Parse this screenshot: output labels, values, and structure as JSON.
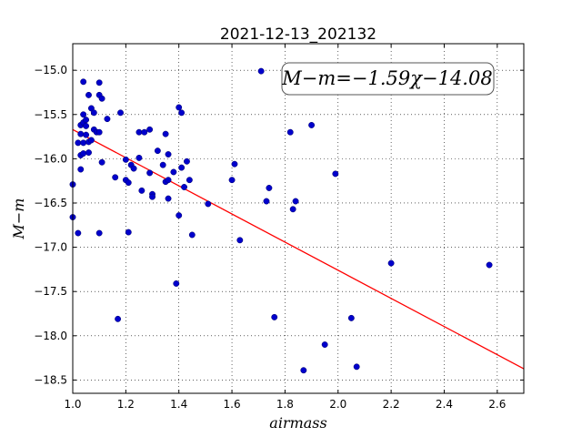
{
  "chart_data": {
    "type": "scatter",
    "title": "2021-12-13_202132",
    "xlabel": "airmass",
    "ylabel": "M−m",
    "xlim": [
      1.0,
      2.7
    ],
    "ylim": [
      -18.65,
      -14.7
    ],
    "y_inverted": true,
    "grid": true,
    "xticks": [
      1.0,
      1.2,
      1.4,
      1.6,
      1.8,
      2.0,
      2.2,
      2.4,
      2.6
    ],
    "xtick_labels": [
      "1.0",
      "1.2",
      "1.4",
      "1.6",
      "1.8",
      "2.0",
      "2.2",
      "2.4",
      "2.6"
    ],
    "yticks": [
      -15.0,
      -15.5,
      -16.0,
      -16.5,
      -17.0,
      -17.5,
      -18.0,
      -18.5
    ],
    "ytick_labels": [
      "−15.0",
      "−15.5",
      "−16.0",
      "−16.5",
      "−17.0",
      "−17.5",
      "−18.0",
      "−18.5"
    ],
    "point_color": "#0000cc",
    "fit_color": "#ff0000",
    "fit": {
      "slope": -1.59,
      "intercept": -14.08,
      "label": "M−m=−1.59χ−14.08"
    },
    "points": [
      [
        1.0,
        -16.29
      ],
      [
        1.0,
        -16.66
      ],
      [
        1.02,
        -15.82
      ],
      [
        1.02,
        -16.84
      ],
      [
        1.03,
        -15.62
      ],
      [
        1.03,
        -15.72
      ],
      [
        1.03,
        -15.96
      ],
      [
        1.03,
        -16.12
      ],
      [
        1.04,
        -15.13
      ],
      [
        1.04,
        -15.5
      ],
      [
        1.04,
        -15.59
      ],
      [
        1.04,
        -15.82
      ],
      [
        1.04,
        -15.94
      ],
      [
        1.05,
        -15.56
      ],
      [
        1.05,
        -15.73
      ],
      [
        1.05,
        -15.63
      ],
      [
        1.06,
        -15.28
      ],
      [
        1.06,
        -15.81
      ],
      [
        1.06,
        -15.93
      ],
      [
        1.07,
        -15.43
      ],
      [
        1.07,
        -15.79
      ],
      [
        1.08,
        -15.48
      ],
      [
        1.08,
        -15.67
      ],
      [
        1.09,
        -15.7
      ],
      [
        1.1,
        -15.28
      ],
      [
        1.1,
        -15.14
      ],
      [
        1.1,
        -15.7
      ],
      [
        1.1,
        -16.84
      ],
      [
        1.11,
        -16.04
      ],
      [
        1.11,
        -15.32
      ],
      [
        1.13,
        -15.55
      ],
      [
        1.16,
        -16.21
      ],
      [
        1.17,
        -17.81
      ],
      [
        1.18,
        -15.48
      ],
      [
        1.2,
        -16.24
      ],
      [
        1.2,
        -16.01
      ],
      [
        1.21,
        -16.27
      ],
      [
        1.21,
        -16.83
      ],
      [
        1.22,
        -16.07
      ],
      [
        1.23,
        -16.11
      ],
      [
        1.25,
        -15.7
      ],
      [
        1.25,
        -15.99
      ],
      [
        1.26,
        -16.36
      ],
      [
        1.27,
        -15.7
      ],
      [
        1.29,
        -15.67
      ],
      [
        1.29,
        -16.16
      ],
      [
        1.3,
        -16.4
      ],
      [
        1.3,
        -16.43
      ],
      [
        1.32,
        -15.91
      ],
      [
        1.34,
        -16.07
      ],
      [
        1.35,
        -15.72
      ],
      [
        1.35,
        -16.26
      ],
      [
        1.36,
        -15.95
      ],
      [
        1.36,
        -16.24
      ],
      [
        1.36,
        -16.45
      ],
      [
        1.38,
        -16.15
      ],
      [
        1.39,
        -17.41
      ],
      [
        1.4,
        -16.64
      ],
      [
        1.4,
        -15.42
      ],
      [
        1.41,
        -15.48
      ],
      [
        1.41,
        -16.1
      ],
      [
        1.42,
        -16.32
      ],
      [
        1.43,
        -16.03
      ],
      [
        1.44,
        -16.24
      ],
      [
        1.45,
        -16.86
      ],
      [
        1.51,
        -16.51
      ],
      [
        1.6,
        -16.24
      ],
      [
        1.61,
        -16.06
      ],
      [
        1.63,
        -16.92
      ],
      [
        1.71,
        -15.01
      ],
      [
        1.73,
        -16.48
      ],
      [
        1.74,
        -16.33
      ],
      [
        1.76,
        -17.79
      ],
      [
        1.82,
        -15.7
      ],
      [
        1.83,
        -16.57
      ],
      [
        1.84,
        -16.48
      ],
      [
        1.87,
        -18.39
      ],
      [
        1.9,
        -15.62
      ],
      [
        1.95,
        -18.1
      ],
      [
        1.99,
        -16.17
      ],
      [
        2.05,
        -17.8
      ],
      [
        2.07,
        -18.35
      ],
      [
        2.2,
        -17.18
      ],
      [
        2.57,
        -17.2
      ]
    ]
  }
}
